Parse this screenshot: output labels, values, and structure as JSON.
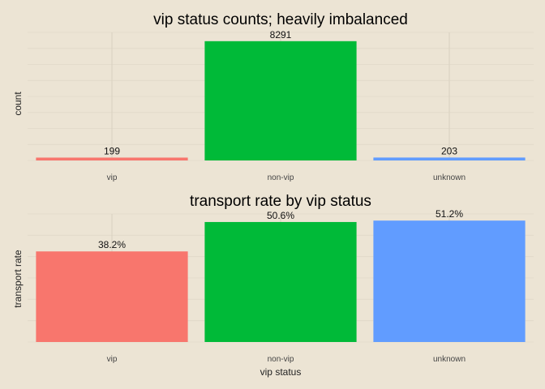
{
  "chart_data": [
    {
      "type": "bar",
      "title": "vip status counts; heavily imbalanced",
      "xlabel": "",
      "ylabel": "count",
      "categories": [
        "vip",
        "non-vip",
        "unknown"
      ],
      "values": [
        199,
        8291,
        203
      ],
      "data_labels": [
        "199",
        "8291",
        "203"
      ],
      "ylim": [
        0,
        8900
      ],
      "colors": [
        "#f8766d",
        "#00ba38",
        "#619cff"
      ],
      "grid": true,
      "legend": "none"
    },
    {
      "type": "bar",
      "title": "transport rate by vip status",
      "xlabel": "vip status",
      "ylabel": "transport rate",
      "categories": [
        "vip",
        "non-vip",
        "unknown"
      ],
      "values": [
        0.382,
        0.506,
        0.512
      ],
      "data_labels": [
        "38.2%",
        "50.6%",
        "51.2%"
      ],
      "ylim": [
        0,
        0.54
      ],
      "colors": [
        "#f8766d",
        "#00ba38",
        "#619cff"
      ],
      "grid": true,
      "legend": "none"
    }
  ],
  "colors": {
    "background": "#ece4d4"
  }
}
